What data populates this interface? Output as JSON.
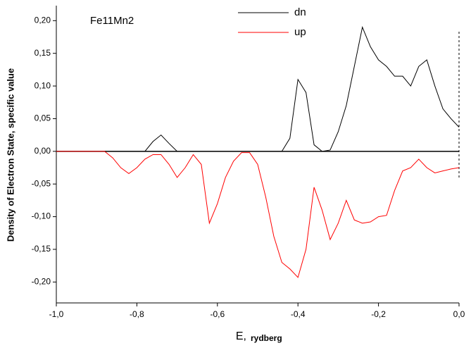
{
  "chart_data": {
    "type": "line",
    "annotation": "Fe11Mn2",
    "xlabel": "E,",
    "xlabel_unit": "rydberg",
    "ylabel": "Density of Electron State, specific value",
    "x": [
      -1.0,
      -0.98,
      -0.96,
      -0.94,
      -0.92,
      -0.9,
      -0.88,
      -0.86,
      -0.84,
      -0.82,
      -0.8,
      -0.78,
      -0.76,
      -0.74,
      -0.72,
      -0.7,
      -0.68,
      -0.66,
      -0.64,
      -0.62,
      -0.6,
      -0.58,
      -0.56,
      -0.54,
      -0.52,
      -0.5,
      -0.48,
      -0.46,
      -0.44,
      -0.42,
      -0.4,
      -0.38,
      -0.36,
      -0.34,
      -0.32,
      -0.3,
      -0.28,
      -0.26,
      -0.24,
      -0.22,
      -0.2,
      -0.18,
      -0.16,
      -0.14,
      -0.12,
      -0.1,
      -0.08,
      -0.06,
      -0.04,
      -0.02,
      0.0
    ],
    "series": [
      {
        "name": "dn",
        "color": "#000000",
        "values": [
          0,
          0,
          0,
          0,
          0,
          0,
          0,
          0,
          0,
          0,
          0,
          0,
          0.015,
          0.025,
          0.012,
          0,
          0,
          0,
          0,
          0,
          0,
          0,
          0,
          0,
          0,
          0,
          0,
          0,
          0,
          0.02,
          0.11,
          0.09,
          0.01,
          0,
          0.002,
          0.03,
          0.07,
          0.13,
          0.19,
          0.16,
          0.14,
          0.13,
          0.115,
          0.115,
          0.1,
          0.13,
          0.14,
          0.1,
          0.065,
          0.05,
          0.037
        ]
      },
      {
        "name": "up",
        "color": "#ff0000",
        "values": [
          0,
          0,
          0,
          0,
          0,
          0,
          0,
          -0.01,
          -0.025,
          -0.034,
          -0.025,
          -0.012,
          -0.005,
          -0.005,
          -0.02,
          -0.04,
          -0.025,
          -0.005,
          -0.02,
          -0.11,
          -0.08,
          -0.04,
          -0.015,
          -0.002,
          -0.002,
          -0.02,
          -0.07,
          -0.13,
          -0.17,
          -0.18,
          -0.193,
          -0.15,
          -0.055,
          -0.09,
          -0.135,
          -0.11,
          -0.075,
          -0.105,
          -0.11,
          -0.108,
          -0.1,
          -0.098,
          -0.06,
          -0.03,
          -0.025,
          -0.012,
          -0.025,
          -0.033,
          -0.03,
          -0.027,
          -0.025
        ]
      }
    ],
    "xlim": [
      -1.0,
      0.0
    ],
    "ylim": [
      -0.232,
      0.223
    ],
    "xticks": [
      {
        "value": -1.0,
        "label": "-1,0"
      },
      {
        "value": -0.8,
        "label": "-0,8"
      },
      {
        "value": -0.6,
        "label": "-0,6"
      },
      {
        "value": -0.4,
        "label": "-0,4"
      },
      {
        "value": -0.2,
        "label": "-0,2"
      },
      {
        "value": 0.0,
        "label": "0,0"
      }
    ],
    "yticks": [
      {
        "value": -0.2,
        "label": "-0,20"
      },
      {
        "value": -0.15,
        "label": "-0,15"
      },
      {
        "value": -0.1,
        "label": "-0,10"
      },
      {
        "value": -0.05,
        "label": "-0,05"
      },
      {
        "value": 0.0,
        "label": "0,00"
      },
      {
        "value": 0.05,
        "label": "0,05"
      },
      {
        "value": 0.1,
        "label": "0,10"
      },
      {
        "value": 0.15,
        "label": "0,15"
      },
      {
        "value": 0.2,
        "label": "0,20"
      }
    ],
    "grid": false
  }
}
